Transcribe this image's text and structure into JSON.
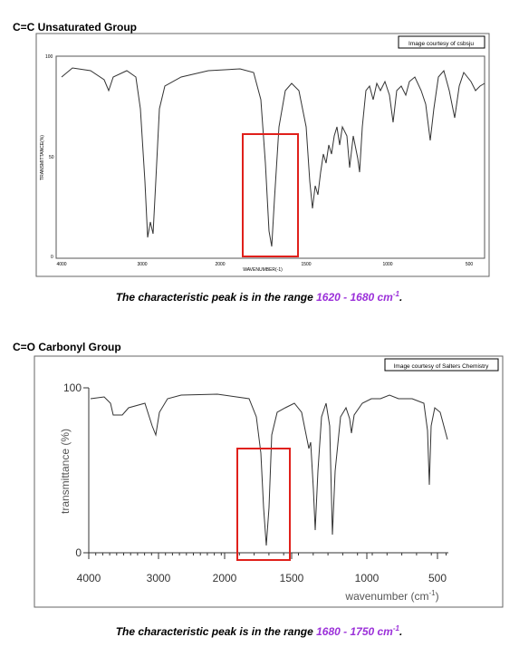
{
  "sections": [
    {
      "heading": "C=C Unsaturated Group",
      "credit": "Image courtesy of csbsju",
      "spectrum": {
        "y_label": "TRANSMITTANCE(%)",
        "x_label": "WAVENUMBER(-1)",
        "y_ticks": [
          "100",
          "50",
          "0"
        ],
        "x_ticks": [
          "4000",
          "3000",
          "2000",
          "1500",
          "1000",
          "500"
        ]
      },
      "caption": {
        "text": "The characteristic peak is in the range ",
        "range": "1620 - 1680 cm",
        "superscript": "-1",
        "end": "."
      }
    },
    {
      "heading": "C=O Carbonyl Group",
      "credit": "Image courtesy of Salters Chemistry",
      "spectrum": {
        "y_label": "transmittance (%)",
        "x_label": "wavenumber (cm",
        "x_label_superscript": "-1",
        "x_label_end": ")",
        "y_ticks": [
          "100",
          "0"
        ],
        "x_ticks": [
          "4000",
          "3000",
          "2000",
          "1500",
          "1000",
          "500"
        ]
      },
      "caption": {
        "text": "The characteristic peak is in the range ",
        "range": "1680 - 1750 cm",
        "superscript": "-1",
        "end": "."
      }
    }
  ]
}
